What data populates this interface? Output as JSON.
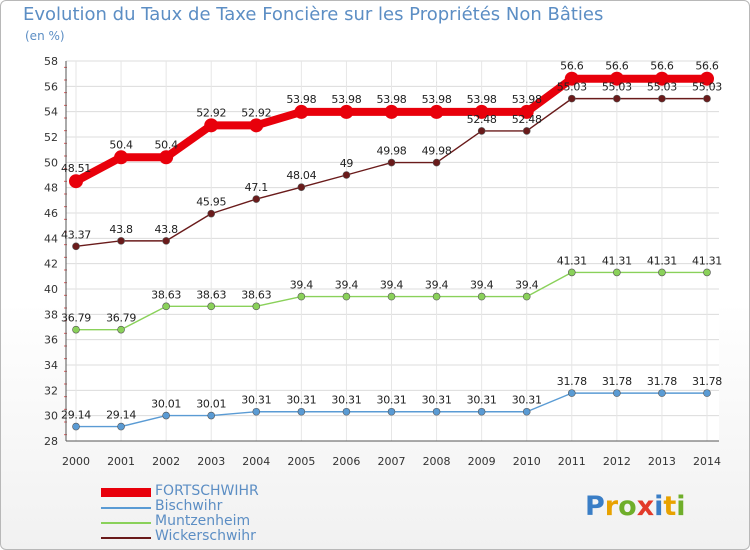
{
  "chart_data": {
    "type": "line",
    "title": "Evolution du Taux de Taxe Foncière sur les Propriétés Non Bâties",
    "ylabel": "(en %)",
    "ylim": [
      28,
      58
    ],
    "yticks": [
      "28",
      "30",
      "32",
      "34",
      "36",
      "38",
      "40",
      "42",
      "44",
      "46",
      "48",
      "50",
      "52",
      "54",
      "56",
      "58"
    ],
    "categories": [
      "2000",
      "2001",
      "2002",
      "2003",
      "2004",
      "2005",
      "2006",
      "2007",
      "2008",
      "2009",
      "2010",
      "2011",
      "2012",
      "2013",
      "2014"
    ],
    "grid": true,
    "legend_position": "bottom-left",
    "series": [
      {
        "name": "FORTSCHWIHR",
        "color": "#e8000b",
        "values": [
          48.51,
          50.4,
          50.4,
          52.92,
          52.92,
          53.98,
          53.98,
          53.98,
          53.98,
          53.98,
          53.98,
          56.6,
          56.6,
          56.6,
          56.6
        ],
        "labels": [
          "48.51",
          "50.4",
          "50.4",
          "52.92",
          "52.92",
          "53.98",
          "53.98",
          "53.98",
          "53.98",
          "53.98",
          "53.98",
          "56.6",
          "56.6",
          "56.6",
          "56.6"
        ]
      },
      {
        "name": "Bischwihr",
        "color": "#5a9bd4",
        "values": [
          29.14,
          29.14,
          30.01,
          30.01,
          30.31,
          30.31,
          30.31,
          30.31,
          30.31,
          30.31,
          30.31,
          31.78,
          31.78,
          31.78,
          31.78
        ],
        "labels": [
          "29.14",
          "29.14",
          "30.01",
          "30.01",
          "30.31",
          "30.31",
          "30.31",
          "30.31",
          "30.31",
          "30.31",
          "30.31",
          "31.78",
          "31.78",
          "31.78",
          "31.78"
        ]
      },
      {
        "name": "Muntzenheim",
        "color": "#8ad15a",
        "values": [
          36.79,
          36.79,
          38.63,
          38.63,
          38.63,
          39.4,
          39.4,
          39.4,
          39.4,
          39.4,
          39.4,
          41.31,
          41.31,
          41.31,
          41.31
        ],
        "labels": [
          "36.79",
          "36.79",
          "38.63",
          "38.63",
          "38.63",
          "39.4",
          "39.4",
          "39.4",
          "39.4",
          "39.4",
          "39.4",
          "41.31",
          "41.31",
          "41.31",
          "41.31"
        ]
      },
      {
        "name": "Wickerschwihr",
        "color": "#6a1b1b",
        "values": [
          43.37,
          43.8,
          43.8,
          45.95,
          47.1,
          48.04,
          49,
          49.98,
          49.98,
          52.48,
          52.48,
          55.03,
          55.03,
          55.03,
          55.03
        ],
        "labels": [
          "43.37",
          "43.8",
          "43.8",
          "45.95",
          "47.1",
          "48.04",
          "49",
          "49.98",
          "49.98",
          "52.48",
          "52.48",
          "55.03",
          "55.03",
          "55.03",
          "55.03"
        ]
      }
    ]
  },
  "logo": {
    "text": "Proxiti"
  }
}
